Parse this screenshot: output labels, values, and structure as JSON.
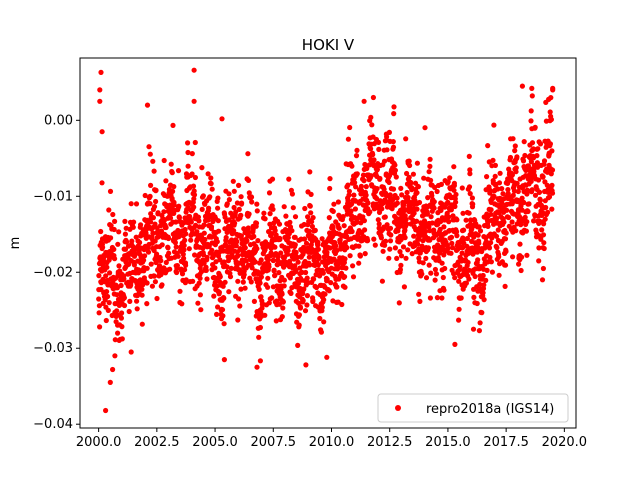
{
  "chart_data": {
    "type": "scatter",
    "title": "HOKI V",
    "xlabel": "",
    "ylabel": "m",
    "xlim": [
      1999.2,
      2020.5
    ],
    "ylim": [
      -0.0405,
      0.0082
    ],
    "x_ticks": [
      2000.0,
      2002.5,
      2005.0,
      2007.5,
      2010.0,
      2012.5,
      2015.0,
      2017.5,
      2020.0
    ],
    "x_tick_labels": [
      "2000.0",
      "2002.5",
      "2005.0",
      "2007.5",
      "2010.0",
      "2012.5",
      "2015.0",
      "2017.5",
      "2020.0"
    ],
    "y_ticks": [
      0.0,
      -0.01,
      -0.02,
      -0.03,
      -0.04
    ],
    "y_tick_labels": [
      "0.00",
      "−0.01",
      "−0.02",
      "−0.03",
      "−0.04"
    ],
    "grid": false,
    "legend_position": "bottom-right",
    "series": [
      {
        "name": "repro2018a (IGS14)",
        "color": "#ff0000",
        "marker": "circle",
        "trend": {
          "x": [
            2000.0,
            2000.5,
            2001.0,
            2001.5,
            2002.0,
            2003.0,
            2004.0,
            2005.0,
            2006.0,
            2007.0,
            2008.0,
            2009.0,
            2010.0,
            2010.5,
            2011.0,
            2011.5,
            2012.0,
            2013.0,
            2014.0,
            2015.0,
            2016.0,
            2016.5,
            2017.0,
            2018.0,
            2019.0,
            2019.5
          ],
          "y": [
            -0.016,
            -0.022,
            -0.021,
            -0.019,
            -0.016,
            -0.015,
            -0.014,
            -0.018,
            -0.016,
            -0.019,
            -0.018,
            -0.019,
            -0.018,
            -0.016,
            -0.012,
            -0.01,
            -0.009,
            -0.012,
            -0.014,
            -0.015,
            -0.017,
            -0.018,
            -0.012,
            -0.01,
            -0.008,
            -0.007
          ]
        },
        "scatter_sd": 0.0035,
        "points": [
          {
            "x": 2000.1,
            "y": 0.0063
          },
          {
            "x": 2000.05,
            "y": 0.004
          },
          {
            "x": 2000.05,
            "y": 0.0025
          },
          {
            "x": 2000.15,
            "y": -0.0015
          },
          {
            "x": 2000.5,
            "y": -0.0345
          },
          {
            "x": 2000.6,
            "y": -0.0328
          },
          {
            "x": 2000.7,
            "y": -0.031
          },
          {
            "x": 2000.3,
            "y": -0.0382
          },
          {
            "x": 2001.4,
            "y": -0.0305
          },
          {
            "x": 2004.1,
            "y": 0.0066
          },
          {
            "x": 2004.1,
            "y": 0.0025
          },
          {
            "x": 2002.1,
            "y": 0.002
          },
          {
            "x": 2005.3,
            "y": 0.0002
          },
          {
            "x": 2005.4,
            "y": -0.0315
          },
          {
            "x": 2006.8,
            "y": -0.0325
          },
          {
            "x": 2008.9,
            "y": -0.0322
          },
          {
            "x": 2009.8,
            "y": -0.0312
          },
          {
            "x": 2011.4,
            "y": 0.0025
          },
          {
            "x": 2011.8,
            "y": 0.003
          },
          {
            "x": 2015.3,
            "y": -0.0295
          },
          {
            "x": 2016.1,
            "y": -0.0275
          },
          {
            "x": 2018.2,
            "y": 0.0045
          },
          {
            "x": 2018.6,
            "y": 0.0042
          },
          {
            "x": 2019.5,
            "y": 0.0042
          },
          {
            "x": 2019.5,
            "y": 0.004
          },
          {
            "x": 2019.1,
            "y": -0.0195
          },
          {
            "x": 2018.9,
            "y": -0.0185
          }
        ]
      }
    ]
  }
}
